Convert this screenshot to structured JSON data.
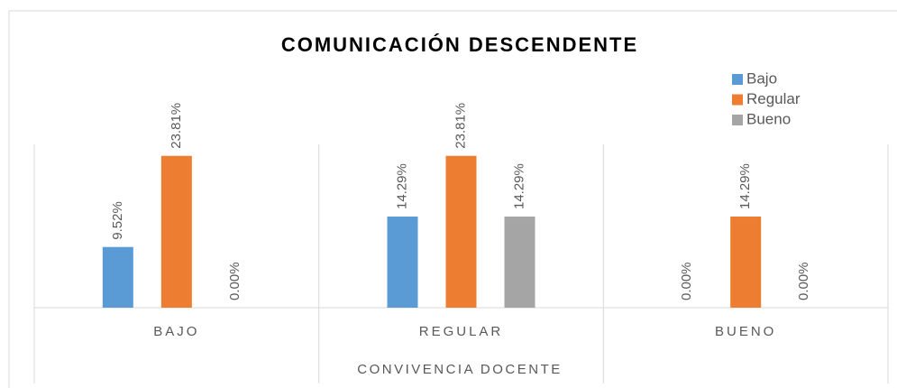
{
  "chart_data": {
    "type": "bar",
    "title": "COMUNICACIÓN DESCENDENTE",
    "x_label": "CONVIVENCIA DOCENTE",
    "categories": [
      "BAJO",
      "REGULAR",
      "BUENO"
    ],
    "series": [
      {
        "name": "Bajo",
        "color": "#5b9bd5",
        "values": [
          9.52,
          14.29,
          0
        ],
        "value_labels": [
          "9.52%",
          "14.29%",
          "0.00%"
        ]
      },
      {
        "name": "Regular",
        "color": "#ed7d31",
        "values": [
          23.81,
          23.81,
          14.29
        ],
        "value_labels": [
          "23.81%",
          "23.81%",
          "14.29%"
        ]
      },
      {
        "name": "Bueno",
        "color": "#a5a5a5",
        "values": [
          0,
          14.29,
          0
        ],
        "value_labels": [
          "0.00%",
          "14.29%",
          "0.00%"
        ]
      }
    ],
    "ylim": [
      0,
      30
    ],
    "legend": "top-right"
  }
}
